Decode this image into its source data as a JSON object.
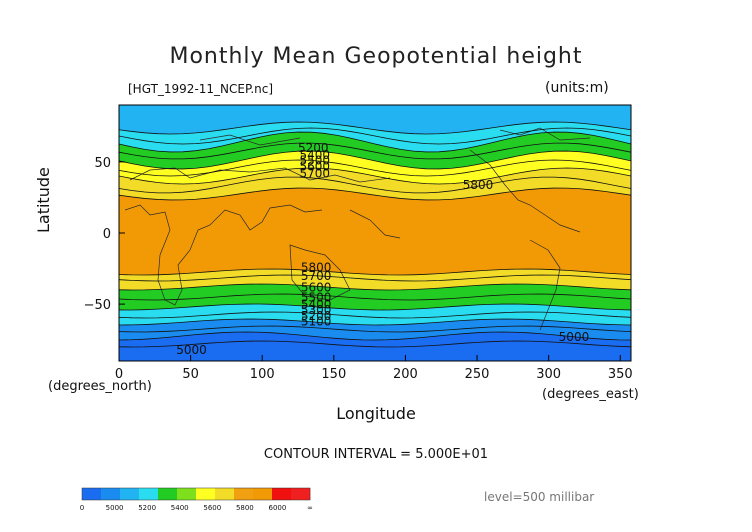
{
  "title": "Monthly Mean Geopotential height",
  "file_label": "[HGT_1992-11_NCEP.nc]",
  "units_label": "(units:m)",
  "xlabel": "Longitude",
  "ylabel": "Latitude",
  "x_unit": "(degrees_east)",
  "y_unit": "(degrees_north)",
  "contour_interval_label": "CONTOUR INTERVAL = 5.000E+01",
  "level_label": "level=500 millibar",
  "chart_data": {
    "type": "heatmap",
    "variable": "Geopotential height",
    "xlim": [
      0,
      357.5
    ],
    "ylim": [
      -90,
      90
    ],
    "x_ticks": [
      0,
      50,
      100,
      150,
      200,
      250,
      300,
      350
    ],
    "y_ticks": [
      50,
      0,
      -50
    ],
    "contour_interval": 50,
    "colorbar": {
      "ticks": [
        "0",
        "5000",
        "5200",
        "5400",
        "5600",
        "5800",
        "6000",
        "∞"
      ],
      "colors": [
        "#1a6cf0",
        "#1a8cf0",
        "#22b4f2",
        "#2adcf0",
        "#22cc22",
        "#7ee01c",
        "#ffff22",
        "#f2dc28",
        "#f0a010",
        "#f29a06",
        "#f01010",
        "#f02020"
      ]
    },
    "contour_labels": [
      {
        "lon": 125,
        "lat": 57,
        "text": "5200"
      },
      {
        "lon": 126,
        "lat": 52,
        "text": "5400"
      },
      {
        "lon": 126,
        "lat": 48,
        "text": "5500"
      },
      {
        "lon": 126,
        "lat": 44,
        "text": "5600"
      },
      {
        "lon": 126,
        "lat": 39,
        "text": "5700"
      },
      {
        "lon": 240,
        "lat": 31,
        "text": "5800"
      },
      {
        "lon": 127,
        "lat": -27,
        "text": "5800"
      },
      {
        "lon": 127,
        "lat": -33,
        "text": "5700"
      },
      {
        "lon": 127,
        "lat": -41,
        "text": "5600"
      },
      {
        "lon": 127,
        "lat": -48,
        "text": "5500"
      },
      {
        "lon": 127,
        "lat": -53,
        "text": "5400"
      },
      {
        "lon": 127,
        "lat": -57,
        "text": "5300"
      },
      {
        "lon": 127,
        "lat": -61,
        "text": "5200"
      },
      {
        "lon": 127,
        "lat": -65,
        "text": "5100"
      },
      {
        "lon": 40,
        "lat": -85,
        "text": "5000"
      },
      {
        "lon": 307,
        "lat": -76,
        "text": "5000"
      }
    ]
  }
}
